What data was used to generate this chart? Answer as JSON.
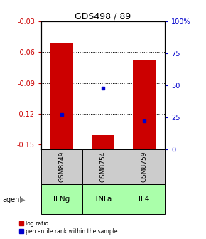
{
  "title": "GDS498 / 89",
  "samples": [
    "GSM8749",
    "GSM8754",
    "GSM8759"
  ],
  "agents": [
    "IFNg",
    "TNFa",
    "IL4"
  ],
  "log_ratio_bottoms": [
    -0.155,
    -0.155,
    -0.155
  ],
  "log_ratio_tops": [
    -0.051,
    -0.141,
    -0.068
  ],
  "percentile_values": [
    27.5,
    48.0,
    22.0
  ],
  "ylim_left": [
    -0.155,
    -0.03
  ],
  "ylim_right": [
    0,
    100
  ],
  "left_ticks": [
    -0.15,
    -0.12,
    -0.09,
    -0.06,
    -0.03
  ],
  "right_ticks": [
    0,
    25,
    50,
    75,
    100
  ],
  "left_tick_labels": [
    "-0.15",
    "-0.12",
    "-0.09",
    "-0.06",
    "-0.03"
  ],
  "right_tick_labels": [
    "0",
    "25",
    "50",
    "75",
    "100%"
  ],
  "bar_color": "#cc0000",
  "percentile_color": "#0000cc",
  "sample_box_color": "#cccccc",
  "agent_box_color": "#aaffaa",
  "bar_width": 0.55,
  "left_label_color": "#cc0000",
  "right_label_color": "#0000cc",
  "grid_lines": [
    -0.06,
    -0.09,
    -0.12
  ]
}
